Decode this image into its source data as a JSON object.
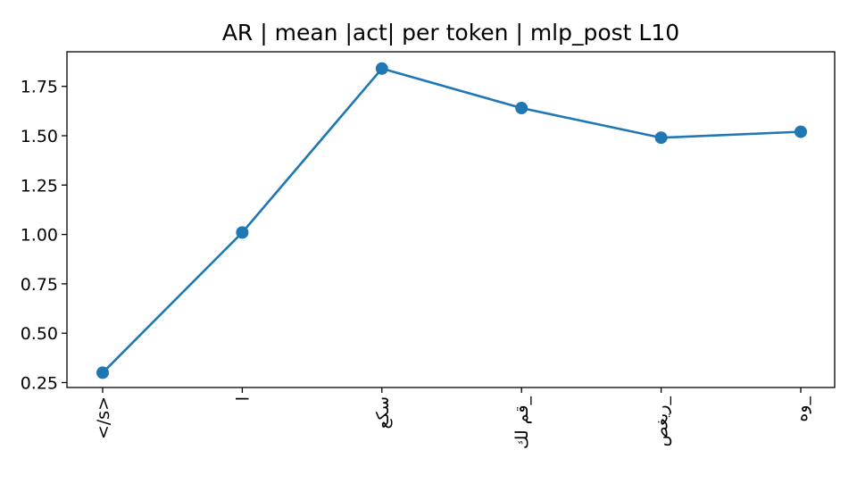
{
  "chart_data": {
    "type": "line",
    "title": "AR | mean |act| per token | mlp_post L10",
    "xlabel": "",
    "ylabel": "",
    "categories": [
      "</s>",
      "ا",
      "سكع",
      "قم لك_",
      "ريغص_",
      "وه_"
    ],
    "series": [
      {
        "values": [
          0.3,
          1.01,
          1.84,
          1.64,
          1.49,
          1.52
        ]
      }
    ],
    "ylim": [
      0.225,
      1.925
    ],
    "yticks": [
      0.25,
      0.5,
      0.75,
      1.0,
      1.25,
      1.5,
      1.75
    ],
    "ytick_labels": [
      "0.25",
      "0.50",
      "0.75",
      "1.00",
      "1.25",
      "1.50",
      "1.75"
    ],
    "xtick_rotation": 90,
    "grid": false,
    "marker": "circle",
    "color": "#1f77b4"
  }
}
